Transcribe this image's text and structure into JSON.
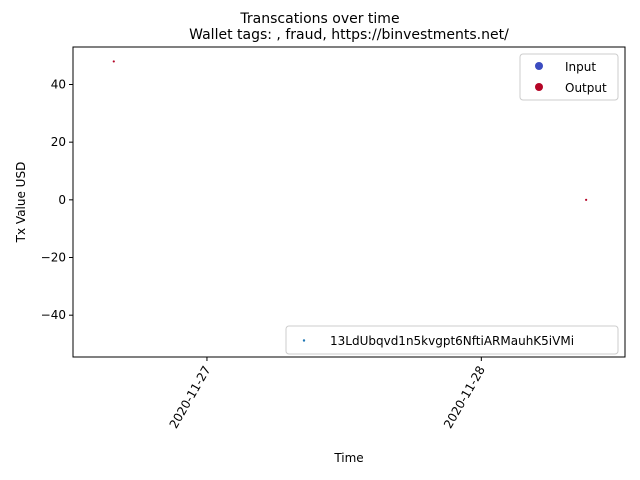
{
  "chart_data": {
    "type": "scatter",
    "suptitle": "Transcations over time",
    "title": "Wallet tags: , fraud, https://binvestments.net/",
    "xlabel": "Time",
    "ylabel": "Tx Value USD",
    "x_ticks": [
      "2020-11-27",
      "2020-11-28"
    ],
    "y_ticks": [
      -40,
      -20,
      0,
      20,
      40
    ],
    "xlim": [
      "2020-11-26 12:17",
      "2020-11-28 12:34"
    ],
    "ylim": [
      -54.5,
      53
    ],
    "grid": false,
    "points": [
      {
        "time": "2020-11-26 15:51",
        "value": 48,
        "color": "#b40426"
      },
      {
        "time": "2020-11-28 09:10",
        "value": 0,
        "color": "#b40426"
      }
    ],
    "legend_direction": {
      "placement": "upper-right",
      "entries": [
        {
          "label": "Input",
          "color": "#3b4cc0"
        },
        {
          "label": "Output",
          "color": "#b40426"
        }
      ]
    },
    "legend_wallet": {
      "placement": "lower-right",
      "entries": [
        {
          "label": "13LdUbqvd1n5kvgpt6NftiARMauhK5iVMi",
          "color": "#1f77b4"
        }
      ]
    }
  }
}
